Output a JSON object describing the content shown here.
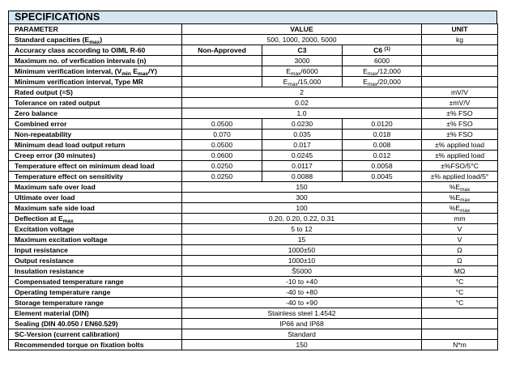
{
  "title": "SPECIFICATIONS",
  "headers": {
    "parameter": "PARAMETER",
    "value": "VALUE",
    "unit": "UNIT"
  },
  "rows": [
    {
      "label": [
        {
          "t": "Standard capacities (E"
        },
        {
          "sub": "max"
        },
        {
          "t": ")"
        }
      ],
      "kind": "span",
      "value": [
        {
          "t": "500, 1000, 2000, 5000"
        }
      ],
      "unit": [
        {
          "t": "kg"
        }
      ]
    },
    {
      "label": [
        {
          "t": "Accuracy class according to OIML R-60"
        }
      ],
      "kind": "split",
      "bold": true,
      "values": [
        [
          {
            "t": "Non-Approved"
          }
        ],
        [
          {
            "t": "C3"
          }
        ],
        [
          {
            "t": "C6 "
          },
          {
            "sup": "(1)"
          }
        ]
      ],
      "unit": []
    },
    {
      "label": [
        {
          "t": "Maximum no. of verfication intervals (n)"
        }
      ],
      "kind": "split",
      "values": [
        [],
        [
          {
            "t": "3000"
          }
        ],
        [
          {
            "t": "6000"
          }
        ]
      ],
      "unit": []
    },
    {
      "label": [
        {
          "t": "Minimum verification interval, (V"
        },
        {
          "sub": "min"
        },
        {
          "t": " E"
        },
        {
          "sub": "max"
        },
        {
          "t": "/Y)"
        }
      ],
      "kind": "split",
      "values": [
        [],
        [
          {
            "t": "E"
          },
          {
            "sub": "max"
          },
          {
            "t": "/6000"
          }
        ],
        [
          {
            "t": "E"
          },
          {
            "sub": "max"
          },
          {
            "t": "/12,000"
          }
        ]
      ],
      "unit": []
    },
    {
      "label": [
        {
          "t": "Minimum verification interval, Type MR"
        }
      ],
      "kind": "split",
      "values": [
        [],
        [
          {
            "t": "E"
          },
          {
            "sub": "max"
          },
          {
            "t": "/15,000"
          }
        ],
        [
          {
            "t": "E"
          },
          {
            "sub": "max"
          },
          {
            "t": "/20,000"
          }
        ]
      ],
      "unit": []
    },
    {
      "label": [
        {
          "t": "Rated output (=S)"
        }
      ],
      "kind": "span",
      "value": [
        {
          "t": "2"
        }
      ],
      "unit": [
        {
          "t": "mV/V"
        }
      ]
    },
    {
      "label": [
        {
          "t": "Tolerance on rated output"
        }
      ],
      "kind": "span",
      "value": [
        {
          "t": "0.02"
        }
      ],
      "unit": [
        {
          "t": "±mV/V"
        }
      ]
    },
    {
      "label": [
        {
          "t": "Zero balance"
        }
      ],
      "kind": "span",
      "value": [
        {
          "t": "1.0"
        }
      ],
      "unit": [
        {
          "t": "±% FSO"
        }
      ]
    },
    {
      "label": [
        {
          "t": "Combined error"
        }
      ],
      "kind": "split",
      "values": [
        [
          {
            "t": "0.0500"
          }
        ],
        [
          {
            "t": "0.0230"
          }
        ],
        [
          {
            "t": "0.0120"
          }
        ]
      ],
      "unit": [
        {
          "t": "±% FSO"
        }
      ]
    },
    {
      "label": [
        {
          "t": "Non-repeatability"
        }
      ],
      "kind": "split",
      "values": [
        [
          {
            "t": "0.070"
          }
        ],
        [
          {
            "t": "0.035"
          }
        ],
        [
          {
            "t": "0.018"
          }
        ]
      ],
      "unit": [
        {
          "t": "±% FSO"
        }
      ]
    },
    {
      "label": [
        {
          "t": "Minimum dead load output return"
        }
      ],
      "kind": "split",
      "values": [
        [
          {
            "t": "0.0500"
          }
        ],
        [
          {
            "t": "0.017"
          }
        ],
        [
          {
            "t": "0.008"
          }
        ]
      ],
      "unit": [
        {
          "t": "±% applied load"
        }
      ]
    },
    {
      "label": [
        {
          "t": "Creep error (30 minutes)"
        }
      ],
      "kind": "split",
      "values": [
        [
          {
            "t": "0.0600"
          }
        ],
        [
          {
            "t": "0.0245"
          }
        ],
        [
          {
            "t": "0.012"
          }
        ]
      ],
      "unit": [
        {
          "t": "±% applied load"
        }
      ]
    },
    {
      "label": [
        {
          "t": "Temperature effect on minimum dead load"
        }
      ],
      "kind": "split",
      "values": [
        [
          {
            "t": "0.0250"
          }
        ],
        [
          {
            "t": "0.0117"
          }
        ],
        [
          {
            "t": "0.0058"
          }
        ]
      ],
      "unit": [
        {
          "t": "±%FSO/5°C"
        }
      ]
    },
    {
      "label": [
        {
          "t": "Temperature effect on sensitivity"
        }
      ],
      "kind": "split",
      "values": [
        [
          {
            "t": "0.0250"
          }
        ],
        [
          {
            "t": "0.0088"
          }
        ],
        [
          {
            "t": "0.0045"
          }
        ]
      ],
      "unit": [
        {
          "t": "±% applied load/5°"
        }
      ]
    },
    {
      "label": [
        {
          "t": "Maximum safe over load"
        }
      ],
      "kind": "span",
      "value": [
        {
          "t": "150"
        }
      ],
      "unit": [
        {
          "t": "%E"
        },
        {
          "sub": "max"
        }
      ]
    },
    {
      "label": [
        {
          "t": "Ultimate over load"
        }
      ],
      "kind": "span",
      "value": [
        {
          "t": "300"
        }
      ],
      "unit": [
        {
          "t": "%E"
        },
        {
          "sub": "max"
        }
      ]
    },
    {
      "label": [
        {
          "t": "Maximum safe side load"
        }
      ],
      "kind": "span",
      "value": [
        {
          "t": "100"
        }
      ],
      "unit": [
        {
          "t": "%E"
        },
        {
          "sub": "max"
        }
      ]
    },
    {
      "label": [
        {
          "t": "Deflection at E"
        },
        {
          "sub": "max"
        }
      ],
      "kind": "span",
      "value": [
        {
          "t": "0.20, 0.20, 0.22, 0.31"
        }
      ],
      "unit": [
        {
          "t": "mm"
        }
      ]
    },
    {
      "label": [
        {
          "t": "Excitation voltage"
        }
      ],
      "kind": "span",
      "value": [
        {
          "t": "5 to 12"
        }
      ],
      "unit": [
        {
          "t": "V"
        }
      ]
    },
    {
      "label": [
        {
          "t": "Maximum excitation voltage"
        }
      ],
      "kind": "span",
      "value": [
        {
          "t": "15"
        }
      ],
      "unit": [
        {
          "t": "V"
        }
      ]
    },
    {
      "label": [
        {
          "t": "Input resistance"
        }
      ],
      "kind": "span",
      "value": [
        {
          "t": "1000±50"
        }
      ],
      "unit": [
        {
          "t": "Ω"
        }
      ]
    },
    {
      "label": [
        {
          "t": "Output resistance"
        }
      ],
      "kind": "span",
      "value": [
        {
          "t": "1000±10"
        }
      ],
      "unit": [
        {
          "t": "Ω"
        }
      ]
    },
    {
      "label": [
        {
          "t": "Insulation resistance"
        }
      ],
      "kind": "span",
      "value": [
        {
          "t": "Š5000"
        }
      ],
      "unit": [
        {
          "t": "MΩ"
        }
      ]
    },
    {
      "label": [
        {
          "t": "Compensated temperature range"
        }
      ],
      "kind": "span",
      "value": [
        {
          "t": "-10 to +40"
        }
      ],
      "unit": [
        {
          "t": "°C"
        }
      ]
    },
    {
      "label": [
        {
          "t": "Operating temperature range"
        }
      ],
      "kind": "span",
      "value": [
        {
          "t": "-40 to +80"
        }
      ],
      "unit": [
        {
          "t": "°C"
        }
      ]
    },
    {
      "label": [
        {
          "t": "Storage temperature range"
        }
      ],
      "kind": "span",
      "value": [
        {
          "t": "-40 to +90"
        }
      ],
      "unit": [
        {
          "t": "°C"
        }
      ]
    },
    {
      "label": [
        {
          "t": "Element material (DIN)"
        }
      ],
      "kind": "span",
      "value": [
        {
          "t": "Stainless steel 1.4542"
        }
      ],
      "unit": []
    },
    {
      "label": [
        {
          "t": "Sealing (DIN 40.050 / EN60.529)"
        }
      ],
      "kind": "span",
      "value": [
        {
          "t": "IP66 and IP68"
        }
      ],
      "unit": []
    },
    {
      "label": [
        {
          "t": "SC-Version (current calibration)"
        }
      ],
      "kind": "span",
      "value": [
        {
          "t": "Standard"
        }
      ],
      "unit": []
    },
    {
      "label": [
        {
          "t": "Recommended torque on fixation bolts"
        }
      ],
      "kind": "span",
      "value": [
        {
          "t": "150"
        }
      ],
      "unit": [
        {
          "t": "N*m"
        }
      ]
    }
  ]
}
